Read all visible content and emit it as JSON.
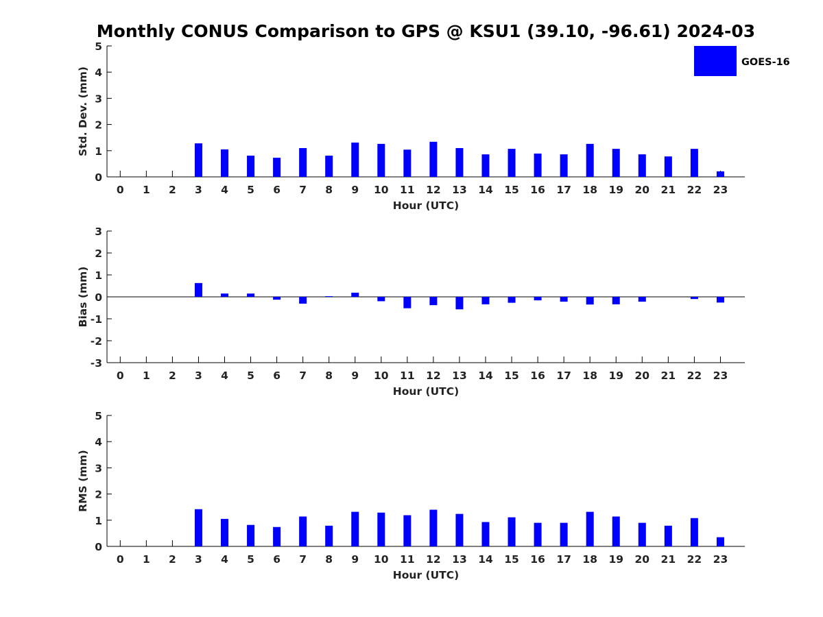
{
  "title": "Monthly CONUS Comparison to GPS @ KSU1 (39.10, -96.61) 2024-03",
  "legend": {
    "label": "GOES-16",
    "color": "#0000ff",
    "placement": "top-right"
  },
  "chart_data": [
    {
      "type": "bar",
      "xlabel": "Hour (UTC)",
      "ylabel": "Std. Dev. (mm)",
      "ylim": [
        0,
        5
      ],
      "yticks": [
        0,
        1,
        2,
        3,
        4,
        5
      ],
      "categories": [
        "0",
        "1",
        "2",
        "3",
        "4",
        "5",
        "6",
        "7",
        "8",
        "9",
        "10",
        "11",
        "12",
        "13",
        "14",
        "15",
        "16",
        "17",
        "18",
        "19",
        "20",
        "21",
        "22",
        "23"
      ],
      "series": [
        {
          "name": "GOES-16",
          "color": "#0000ff",
          "values": [
            null,
            null,
            null,
            1.28,
            1.05,
            0.81,
            0.73,
            1.1,
            0.81,
            1.31,
            1.26,
            1.04,
            1.34,
            1.1,
            0.86,
            1.07,
            0.89,
            0.86,
            1.26,
            1.07,
            0.86,
            0.78,
            1.07,
            0.21
          ]
        }
      ]
    },
    {
      "type": "bar",
      "xlabel": "Hour (UTC)",
      "ylabel": "Bias (mm)",
      "ylim": [
        -3,
        3
      ],
      "yticks": [
        -3,
        -2,
        -1,
        0,
        1,
        2,
        3
      ],
      "categories": [
        "0",
        "1",
        "2",
        "3",
        "4",
        "5",
        "6",
        "7",
        "8",
        "9",
        "10",
        "11",
        "12",
        "13",
        "14",
        "15",
        "16",
        "17",
        "18",
        "19",
        "20",
        "21",
        "22",
        "23"
      ],
      "series": [
        {
          "name": "GOES-16",
          "color": "#0000ff",
          "values": [
            null,
            null,
            null,
            0.63,
            0.15,
            0.15,
            -0.13,
            -0.31,
            0.03,
            0.19,
            -0.2,
            -0.52,
            -0.38,
            -0.57,
            -0.34,
            -0.27,
            -0.16,
            -0.22,
            -0.35,
            -0.34,
            -0.22,
            0.0,
            -0.1,
            -0.26
          ]
        }
      ]
    },
    {
      "type": "bar",
      "xlabel": "Hour (UTC)",
      "ylabel": "RMS (mm)",
      "ylim": [
        0,
        5
      ],
      "yticks": [
        0,
        1,
        2,
        3,
        4,
        5
      ],
      "categories": [
        "0",
        "1",
        "2",
        "3",
        "4",
        "5",
        "6",
        "7",
        "8",
        "9",
        "10",
        "11",
        "12",
        "13",
        "14",
        "15",
        "16",
        "17",
        "18",
        "19",
        "20",
        "21",
        "22",
        "23"
      ],
      "series": [
        {
          "name": "GOES-16",
          "color": "#0000ff",
          "values": [
            null,
            null,
            null,
            1.42,
            1.05,
            0.82,
            0.74,
            1.14,
            0.79,
            1.32,
            1.29,
            1.19,
            1.4,
            1.24,
            0.93,
            1.11,
            0.9,
            0.9,
            1.32,
            1.14,
            0.9,
            0.79,
            1.08,
            0.35
          ]
        }
      ]
    }
  ]
}
